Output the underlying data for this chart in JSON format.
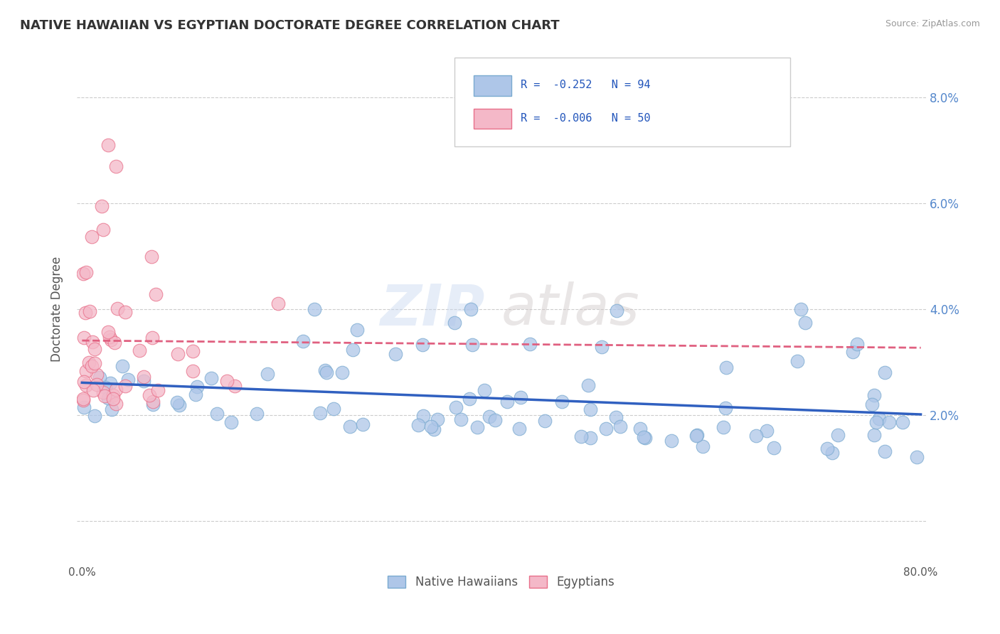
{
  "title": "NATIVE HAWAIIAN VS EGYPTIAN DOCTORATE DEGREE CORRELATION CHART",
  "source": "Source: ZipAtlas.com",
  "ylabel": "Doctorate Degree",
  "ytick_vals": [
    0.0,
    0.02,
    0.04,
    0.06,
    0.08
  ],
  "ytick_labels_right": [
    "",
    "2.0%",
    "4.0%",
    "6.0%",
    "8.0%"
  ],
  "xlim": [
    -0.005,
    0.805
  ],
  "ylim": [
    -0.008,
    0.088
  ],
  "legend_r1": "R = -0.252",
  "legend_n1": "N = 94",
  "legend_r2": "R = -0.006",
  "legend_n2": "N = 50",
  "watermark_zip": "ZIP",
  "watermark_atlas": "atlas",
  "hawaiian_color": "#aec6e8",
  "hawaiian_edge": "#7aaad0",
  "egyptian_color": "#f4b8c8",
  "egyptian_edge": "#e8708a",
  "trend_hawaiian_color": "#3060c0",
  "trend_egyptian_color": "#e06080",
  "background": "#ffffff",
  "grid_color": "#cccccc",
  "right_tick_color": "#5588cc",
  "hawaiian_seed": 12,
  "egyptian_seed": 99
}
